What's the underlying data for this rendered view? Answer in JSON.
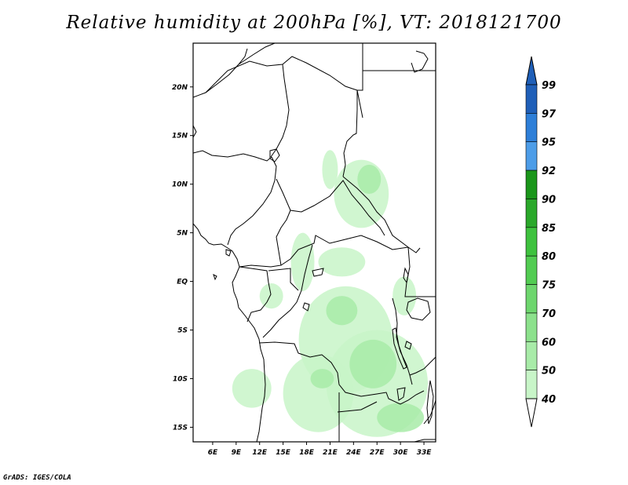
{
  "title": "Relative humidity at 200hPa [%], VT: 2018121700",
  "credit": "GrADS: IGES/COLA",
  "map": {
    "lon_range": [
      3.5,
      34.5
    ],
    "lat_range": [
      -16.5,
      24.5
    ],
    "x_ticks": [
      {
        "lon": 6,
        "label": "6E"
      },
      {
        "lon": 9,
        "label": "9E"
      },
      {
        "lon": 12,
        "label": "12E"
      },
      {
        "lon": 15,
        "label": "15E"
      },
      {
        "lon": 18,
        "label": "18E"
      },
      {
        "lon": 21,
        "label": "21E"
      },
      {
        "lon": 24,
        "label": "24E"
      },
      {
        "lon": 27,
        "label": "27E"
      },
      {
        "lon": 30,
        "label": "30E"
      },
      {
        "lon": 33,
        "label": "33E"
      }
    ],
    "y_ticks": [
      {
        "lat": 20,
        "label": "20N"
      },
      {
        "lat": 15,
        "label": "15N"
      },
      {
        "lat": 10,
        "label": "10N"
      },
      {
        "lat": 5,
        "label": "5N"
      },
      {
        "lat": 0,
        "label": "EQ"
      },
      {
        "lat": -5,
        "label": "5S"
      },
      {
        "lat": -10,
        "label": "10S"
      },
      {
        "lat": -15,
        "label": "15S"
      }
    ]
  },
  "colorbar": {
    "levels": [
      "40",
      "50",
      "60",
      "70",
      "75",
      "80",
      "85",
      "90",
      "92",
      "95",
      "97",
      "99"
    ],
    "colors": [
      "#f0fff0",
      "#c8f5c8",
      "#a8eba8",
      "#8ce18c",
      "#6ed66e",
      "#52cc52",
      "#3ec23e",
      "#2aa82a",
      "#1a961a",
      "#4d9de8",
      "#2e7fd8",
      "#1f5fb8"
    ]
  },
  "humidity_regions": [
    {
      "level": "50",
      "lon": 27.0,
      "lat": -10.5,
      "rx": 6.5,
      "ry": 5.5
    },
    {
      "level": "50",
      "lon": 23.0,
      "lat": -6.0,
      "rx": 6.0,
      "ry": 5.5
    },
    {
      "level": "50",
      "lon": 19.5,
      "lat": -11.5,
      "rx": 4.5,
      "ry": 4.0
    },
    {
      "level": "50",
      "lon": 25.0,
      "lat": 9.0,
      "rx": 3.5,
      "ry": 3.5
    },
    {
      "level": "50",
      "lon": 17.5,
      "lat": 2.0,
      "rx": 1.5,
      "ry": 3.0
    },
    {
      "level": "50",
      "lon": 11.0,
      "lat": -11.0,
      "rx": 2.5,
      "ry": 2.0
    },
    {
      "level": "50",
      "lon": 13.5,
      "lat": -1.5,
      "rx": 1.5,
      "ry": 1.3
    },
    {
      "level": "50",
      "lon": 21.0,
      "lat": 11.5,
      "rx": 1.0,
      "ry": 2.0
    },
    {
      "level": "50",
      "lon": 22.5,
      "lat": 2.0,
      "rx": 3.0,
      "ry": 1.5
    },
    {
      "level": "50",
      "lon": 30.5,
      "lat": -1.5,
      "rx": 1.5,
      "ry": 2.0
    },
    {
      "level": "60",
      "lon": 26.5,
      "lat": -8.5,
      "rx": 3.0,
      "ry": 2.5
    },
    {
      "level": "60",
      "lon": 22.5,
      "lat": -3.0,
      "rx": 2.0,
      "ry": 1.5
    },
    {
      "level": "60",
      "lon": 26.0,
      "lat": 10.5,
      "rx": 1.5,
      "ry": 1.5
    },
    {
      "level": "60",
      "lon": 30.0,
      "lat": -14.0,
      "rx": 3.0,
      "ry": 1.5
    },
    {
      "level": "60",
      "lon": 20.0,
      "lat": -10.0,
      "rx": 1.5,
      "ry": 1.0
    }
  ]
}
